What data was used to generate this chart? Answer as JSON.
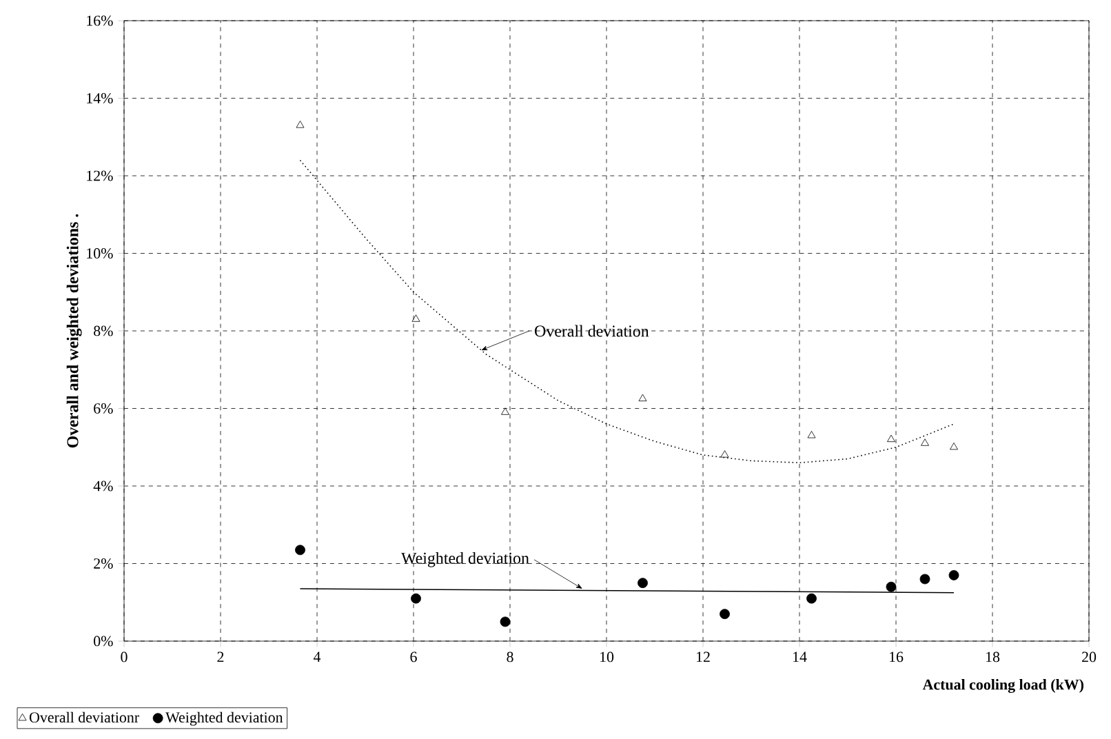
{
  "chart_data": {
    "type": "scatter",
    "xlabel": "Actual cooling load (kW)",
    "ylabel": "Overall and weighted deviations .",
    "xlim": [
      0,
      20
    ],
    "xticks": [
      0,
      2,
      4,
      6,
      8,
      10,
      12,
      14,
      16,
      18,
      20
    ],
    "ylim": [
      0,
      16
    ],
    "yticks": [
      {
        "value": 0,
        "label": "0%"
      },
      {
        "value": 2,
        "label": "2%"
      },
      {
        "value": 4,
        "label": "4%"
      },
      {
        "value": 6,
        "label": "6%"
      },
      {
        "value": 8,
        "label": "8%"
      },
      {
        "value": 10,
        "label": "10%"
      },
      {
        "value": 12,
        "label": "12%"
      },
      {
        "value": 14,
        "label": "14%"
      },
      {
        "value": 16,
        "label": "16%"
      }
    ],
    "grid": true,
    "legend": "bottom left",
    "series": [
      {
        "name": "Overall deviationr",
        "marker": "triangle",
        "color": "#000000",
        "x": [
          3.65,
          6.05,
          7.9,
          10.75,
          12.45,
          14.25,
          15.9,
          16.6,
          17.2
        ],
        "values": [
          13.3,
          8.3,
          5.9,
          6.25,
          4.8,
          5.3,
          5.2,
          5.1,
          5.0
        ]
      },
      {
        "name": "Weighted deviation",
        "marker": "circle",
        "color": "#000000",
        "x": [
          3.65,
          6.05,
          7.9,
          10.75,
          12.45,
          14.25,
          15.9,
          16.6,
          17.2
        ],
        "values": [
          2.35,
          1.1,
          0.5,
          1.5,
          0.7,
          1.1,
          1.4,
          1.6,
          1.7
        ]
      },
      {
        "type": "line",
        "line_style": "dotted",
        "color": "#000000",
        "x": [
          3.65,
          5,
          6,
          7.5,
          9,
          10,
          11,
          12,
          13,
          14,
          15,
          16,
          17.2
        ],
        "values": [
          12.4,
          10.4,
          9.0,
          7.4,
          6.2,
          5.6,
          5.15,
          4.8,
          4.65,
          4.6,
          4.7,
          5.0,
          5.6
        ]
      },
      {
        "type": "line",
        "line_style": "solid",
        "color": "#000000",
        "x": [
          3.65,
          17.2
        ],
        "values": [
          1.35,
          1.25
        ]
      }
    ],
    "annotations": [
      {
        "text": "Overall deviation",
        "x": 7.4,
        "y": 7.5
      },
      {
        "text": "Weighted deviation",
        "x": 9.5,
        "y": 1.35
      }
    ]
  }
}
